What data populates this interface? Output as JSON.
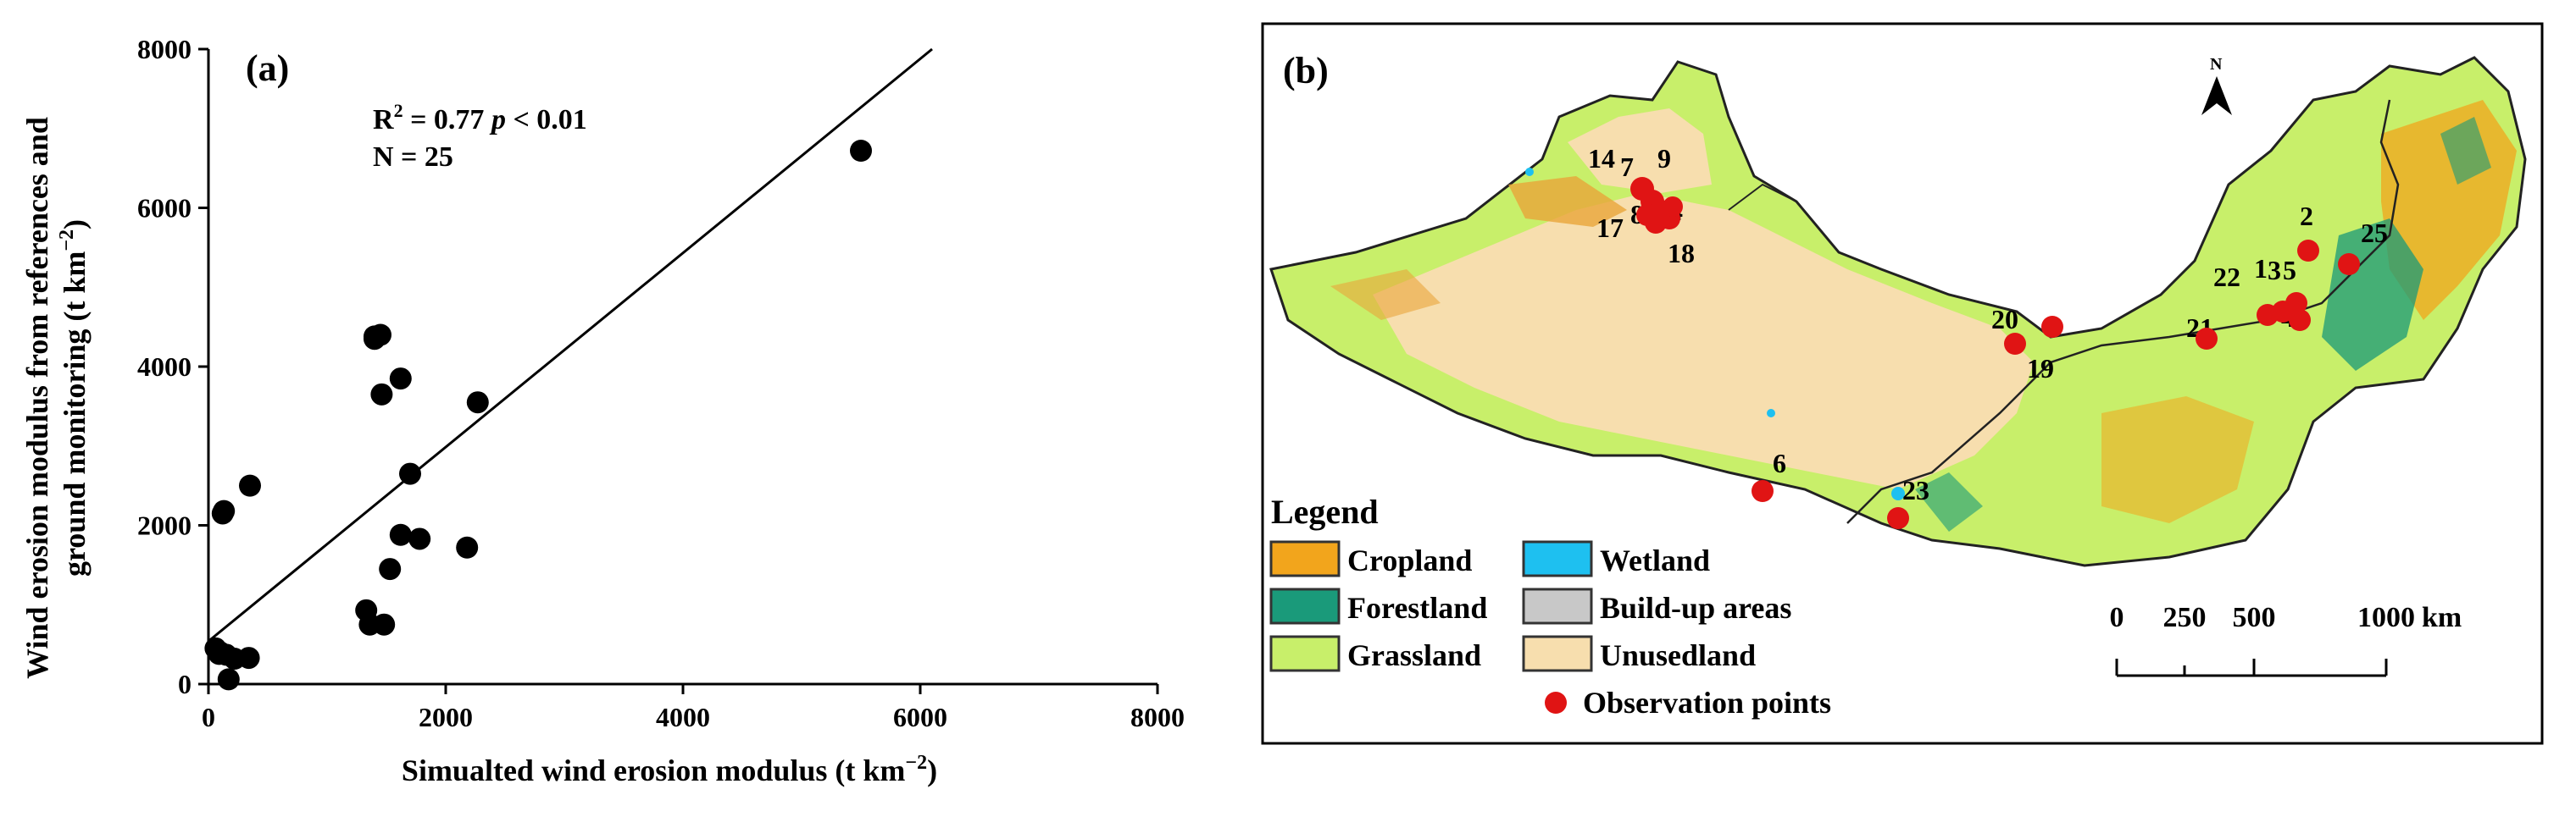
{
  "chart_data": [
    {
      "type": "scatter",
      "panel": "(a)",
      "xlabel": "Simualted wind erosion modulus (t km−2)",
      "ylabel_line1": "Wind erosion modulus from references and",
      "ylabel_line2": "ground monitoring (t km−2)",
      "xlim": [
        0,
        8000
      ],
      "ylim": [
        0,
        8000
      ],
      "xticks": [
        "0",
        "2000",
        "4000",
        "6000",
        "8000"
      ],
      "yticks": [
        "0",
        "2000",
        "4000",
        "6000",
        "8000"
      ],
      "annotation_r2": "R² = 0.77 p < 0.01",
      "annotation_n": "N = 25",
      "points": [
        {
          "x": 5500,
          "y": 6720
        },
        {
          "x": 1400,
          "y": 4350
        },
        {
          "x": 1450,
          "y": 4400
        },
        {
          "x": 1620,
          "y": 3850
        },
        {
          "x": 1460,
          "y": 3650
        },
        {
          "x": 2270,
          "y": 3550
        },
        {
          "x": 1700,
          "y": 2650
        },
        {
          "x": 350,
          "y": 2500
        },
        {
          "x": 120,
          "y": 2150
        },
        {
          "x": 1620,
          "y": 1880
        },
        {
          "x": 1780,
          "y": 1830
        },
        {
          "x": 2180,
          "y": 1720
        },
        {
          "x": 1530,
          "y": 1450
        },
        {
          "x": 1330,
          "y": 930
        },
        {
          "x": 1360,
          "y": 750
        },
        {
          "x": 1480,
          "y": 750
        },
        {
          "x": 60,
          "y": 450
        },
        {
          "x": 90,
          "y": 380
        },
        {
          "x": 150,
          "y": 370
        },
        {
          "x": 220,
          "y": 320
        },
        {
          "x": 340,
          "y": 330
        },
        {
          "x": 170,
          "y": 60
        },
        {
          "x": 100,
          "y": 400
        },
        {
          "x": 1400,
          "y": 4380
        },
        {
          "x": 130,
          "y": 2180
        }
      ],
      "fit_line": {
        "x": [
          0,
          6100
        ],
        "y": [
          540,
          8000
        ]
      }
    },
    {
      "type": "map",
      "panel": "(b)",
      "legend_title": "Legend",
      "legend": [
        {
          "label": "Cropland",
          "color": "#f2a51c"
        },
        {
          "label": "Wetland",
          "color": "#1ec0f0"
        },
        {
          "label": "Forestland",
          "color": "#1a9a7a"
        },
        {
          "label": "Build-up areas",
          "color": "#c8c8c8"
        },
        {
          "label": "Grassland",
          "color": "#c8ef6a"
        },
        {
          "label": "Unusedland",
          "color": "#f7deae"
        },
        {
          "label": "Observation points",
          "color": "#e01414"
        }
      ],
      "north_label": "N",
      "scale_labels": [
        "0",
        "250",
        "500",
        "1000"
      ],
      "scale_unit": "km",
      "sites": [
        {
          "label": "14"
        },
        {
          "label": "7"
        },
        {
          "label": "9"
        },
        {
          "label": "17"
        },
        {
          "label": "8"
        },
        {
          "label": "24"
        },
        {
          "label": "18"
        },
        {
          "label": "20"
        },
        {
          "label": "19"
        },
        {
          "label": "6"
        },
        {
          "label": "23"
        },
        {
          "label": "2"
        },
        {
          "label": "25"
        },
        {
          "label": "22"
        },
        {
          "label": "1"
        },
        {
          "label": "3"
        },
        {
          "label": "5"
        },
        {
          "label": "21"
        },
        {
          "label": "4"
        }
      ]
    }
  ]
}
